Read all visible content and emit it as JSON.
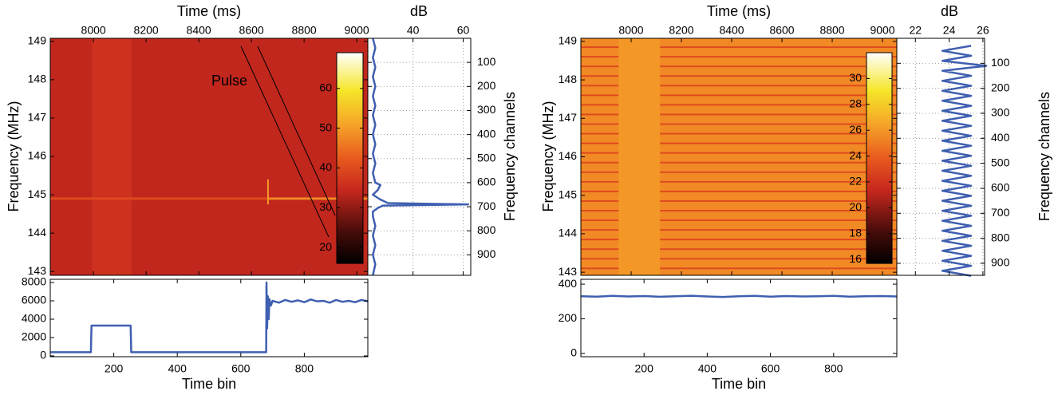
{
  "chart_data": [
    {
      "type": "heatmap",
      "xlabel": "Time (ms)",
      "ylabel": "Frequency (MHz)",
      "annotation": "Pulse",
      "xlim": [
        7836,
        9042
      ],
      "xticks": [
        8000,
        8200,
        8400,
        8600,
        8800,
        9000
      ],
      "ylim": [
        142.9,
        149.08
      ],
      "yticks": [
        143,
        144,
        145,
        146,
        147,
        148,
        149
      ],
      "colormap": "hot",
      "clim": [
        16,
        69
      ],
      "cticks": [
        20,
        30,
        40,
        50,
        60
      ],
      "cells": [
        {
          "x": [
            7836,
            9042
          ],
          "y": [
            142.9,
            149.08
          ],
          "value": 34
        },
        {
          "x": [
            7995,
            8145
          ],
          "y": [
            142.9,
            149.08
          ],
          "value": 36
        },
        {
          "x": [
            7836,
            8663
          ],
          "y": [
            144.87,
            144.93
          ],
          "value": 40
        },
        {
          "x": [
            8663,
            9042
          ],
          "y": [
            144.87,
            144.93
          ],
          "value": 48
        },
        {
          "x": [
            8660,
            8666
          ],
          "y": [
            144.75,
            145.4
          ],
          "value": 50
        }
      ]
    },
    {
      "type": "line",
      "xlabel": "dB",
      "ylabel": "Frequency channels",
      "grid": true,
      "xlim": [
        22,
        63
      ],
      "xticks": [
        40,
        60
      ],
      "ylim": [
        985,
        0
      ],
      "yticks": [
        100,
        200,
        300,
        400,
        500,
        600,
        700,
        800,
        900
      ],
      "series": [
        {
          "color": "#3f5fb0",
          "y": [
            0,
            40,
            80,
            120,
            160,
            200,
            240,
            280,
            320,
            360,
            400,
            440,
            480,
            520,
            560,
            600,
            610,
            630,
            650,
            670,
            685,
            690,
            695,
            705,
            720,
            740,
            780,
            820,
            860,
            900,
            940,
            985
          ],
          "values": [
            24,
            25,
            24,
            25,
            24,
            25,
            24,
            25,
            24,
            25,
            24,
            25,
            24,
            25,
            24,
            25,
            27,
            26,
            24,
            27,
            30,
            62,
            28,
            26,
            24,
            24,
            25,
            24,
            25,
            24,
            25,
            24
          ]
        }
      ]
    },
    {
      "type": "line",
      "xlabel": "Time bin",
      "xlim": [
        0,
        1000
      ],
      "xticks": [
        200,
        400,
        600,
        800
      ],
      "ylim": [
        -90,
        8350
      ],
      "yticks": [
        0,
        2000,
        4000,
        6000,
        8000
      ],
      "series": [
        {
          "color": "#3f5fb0",
          "x": [
            0,
            128,
            130,
            253,
            255,
            678,
            680,
            681,
            683,
            685,
            688,
            690,
            695,
            700,
            720,
            740,
            760,
            780,
            800,
            820,
            840,
            860,
            880,
            900,
            920,
            940,
            960,
            980,
            1000
          ],
          "values": [
            400,
            400,
            3300,
            3300,
            400,
            400,
            400,
            8000,
            3000,
            6500,
            4000,
            6200,
            5500,
            6000,
            5800,
            6100,
            5900,
            6050,
            5850,
            6150,
            5950,
            6000,
            5800,
            6100,
            5900,
            6000,
            5850,
            6100,
            5950
          ]
        }
      ]
    },
    {
      "type": "heatmap",
      "xlabel": "Time (ms)",
      "ylabel": "Frequency (MHz)",
      "xlim": [
        7800,
        9057
      ],
      "xticks": [
        8000,
        8200,
        8400,
        8600,
        8800,
        9000
      ],
      "ylim": [
        142.92,
        149.08
      ],
      "yticks": [
        143,
        144,
        145,
        146,
        147,
        148,
        149
      ],
      "colormap": "hot",
      "clim": [
        15.7,
        32
      ],
      "cticks": [
        16,
        18,
        20,
        22,
        24,
        26,
        28,
        30
      ],
      "cells": [
        {
          "x": [
            7800,
            9057
          ],
          "y": [
            142.92,
            149.08
          ],
          "value": 25.5
        },
        {
          "x": [
            7800,
            9057
          ],
          "y": [
            143.08,
            143.12
          ],
          "value": 23
        },
        {
          "x": [
            7800,
            9057
          ],
          "y": [
            143.33,
            143.37
          ],
          "value": 23
        },
        {
          "x": [
            7800,
            9057
          ],
          "y": [
            143.58,
            143.62
          ],
          "value": 23
        },
        {
          "x": [
            7800,
            9057
          ],
          "y": [
            143.83,
            143.87
          ],
          "value": 23
        },
        {
          "x": [
            7800,
            9057
          ],
          "y": [
            144.08,
            144.12
          ],
          "value": 23
        },
        {
          "x": [
            7800,
            9057
          ],
          "y": [
            144.33,
            144.37
          ],
          "value": 23
        },
        {
          "x": [
            7800,
            9057
          ],
          "y": [
            144.58,
            144.62
          ],
          "value": 23
        },
        {
          "x": [
            7800,
            9057
          ],
          "y": [
            144.83,
            144.87
          ],
          "value": 23
        },
        {
          "x": [
            7800,
            9057
          ],
          "y": [
            145.08,
            145.12
          ],
          "value": 23
        },
        {
          "x": [
            7800,
            9057
          ],
          "y": [
            145.33,
            145.37
          ],
          "value": 23
        },
        {
          "x": [
            7800,
            9057
          ],
          "y": [
            145.58,
            145.62
          ],
          "value": 23
        },
        {
          "x": [
            7800,
            9057
          ],
          "y": [
            145.83,
            145.87
          ],
          "value": 23
        },
        {
          "x": [
            7800,
            9057
          ],
          "y": [
            146.08,
            146.12
          ],
          "value": 23
        },
        {
          "x": [
            7800,
            9057
          ],
          "y": [
            146.33,
            146.37
          ],
          "value": 23
        },
        {
          "x": [
            7800,
            9057
          ],
          "y": [
            146.58,
            146.62
          ],
          "value": 23
        },
        {
          "x": [
            7800,
            9057
          ],
          "y": [
            146.83,
            146.87
          ],
          "value": 23
        },
        {
          "x": [
            7800,
            9057
          ],
          "y": [
            147.08,
            147.12
          ],
          "value": 23
        },
        {
          "x": [
            7800,
            9057
          ],
          "y": [
            147.33,
            147.37
          ],
          "value": 23
        },
        {
          "x": [
            7800,
            9057
          ],
          "y": [
            147.58,
            147.62
          ],
          "value": 23
        },
        {
          "x": [
            7800,
            9057
          ],
          "y": [
            147.83,
            147.87
          ],
          "value": 23
        },
        {
          "x": [
            7800,
            9057
          ],
          "y": [
            148.08,
            148.12
          ],
          "value": 23
        },
        {
          "x": [
            7800,
            9057
          ],
          "y": [
            148.33,
            148.37
          ],
          "value": 23
        },
        {
          "x": [
            7800,
            9057
          ],
          "y": [
            148.58,
            148.62
          ],
          "value": 23
        },
        {
          "x": [
            7800,
            9057
          ],
          "y": [
            148.83,
            148.87
          ],
          "value": 23
        },
        {
          "x": [
            7950,
            8115
          ],
          "y": [
            142.92,
            149.08
          ],
          "value": 26
        }
      ]
    },
    {
      "type": "line",
      "xlabel": "dB",
      "ylabel": "Frequency channels",
      "grid": true,
      "xlim": [
        20.9,
        26.1
      ],
      "xticks": [
        22,
        24,
        26
      ],
      "ylim": [
        948,
        0
      ],
      "yticks": [
        100,
        200,
        300,
        400,
        500,
        600,
        700,
        800,
        900
      ],
      "series": [
        {
          "color": "#3f5fb0",
          "y": [
            30,
            50,
            70,
            90,
            110,
            130,
            150,
            170,
            190,
            210,
            230,
            250,
            270,
            290,
            310,
            330,
            350,
            370,
            390,
            410,
            430,
            450,
            470,
            490,
            510,
            530,
            550,
            570,
            590,
            610,
            630,
            650,
            670,
            690,
            710,
            730,
            750,
            770,
            790,
            810,
            830,
            850,
            870,
            890,
            910,
            930,
            950
          ],
          "values": [
            25.3,
            23.6,
            25.3,
            23.6,
            26.2,
            23.6,
            25.3,
            23.6,
            25.3,
            23.6,
            25.3,
            23.6,
            25.3,
            23.6,
            25.3,
            23.6,
            25.3,
            23.6,
            25.3,
            23.6,
            25.3,
            23.6,
            25.3,
            23.6,
            25.3,
            23.6,
            25.3,
            23.6,
            25.3,
            23.6,
            25.3,
            23.6,
            25.3,
            23.6,
            25.3,
            23.6,
            25.3,
            23.6,
            25.3,
            23.6,
            25.3,
            23.6,
            25.3,
            23.6,
            25.3,
            23.6,
            25.3
          ]
        }
      ]
    },
    {
      "type": "line",
      "xlabel": "Time bin",
      "xlim": [
        0,
        1000
      ],
      "xticks": [
        200,
        400,
        600,
        800
      ],
      "ylim": [
        -19,
        428
      ],
      "yticks": [
        0,
        200,
        400
      ],
      "series": [
        {
          "color": "#3f5fb0",
          "x": [
            0,
            50,
            100,
            150,
            200,
            250,
            300,
            350,
            400,
            450,
            500,
            550,
            600,
            650,
            700,
            750,
            800,
            850,
            900,
            950,
            1000
          ],
          "values": [
            330,
            328,
            332,
            329,
            331,
            327,
            330,
            333,
            329,
            326,
            330,
            332,
            328,
            331,
            329,
            330,
            332,
            328,
            330,
            331,
            329
          ]
        }
      ]
    }
  ]
}
